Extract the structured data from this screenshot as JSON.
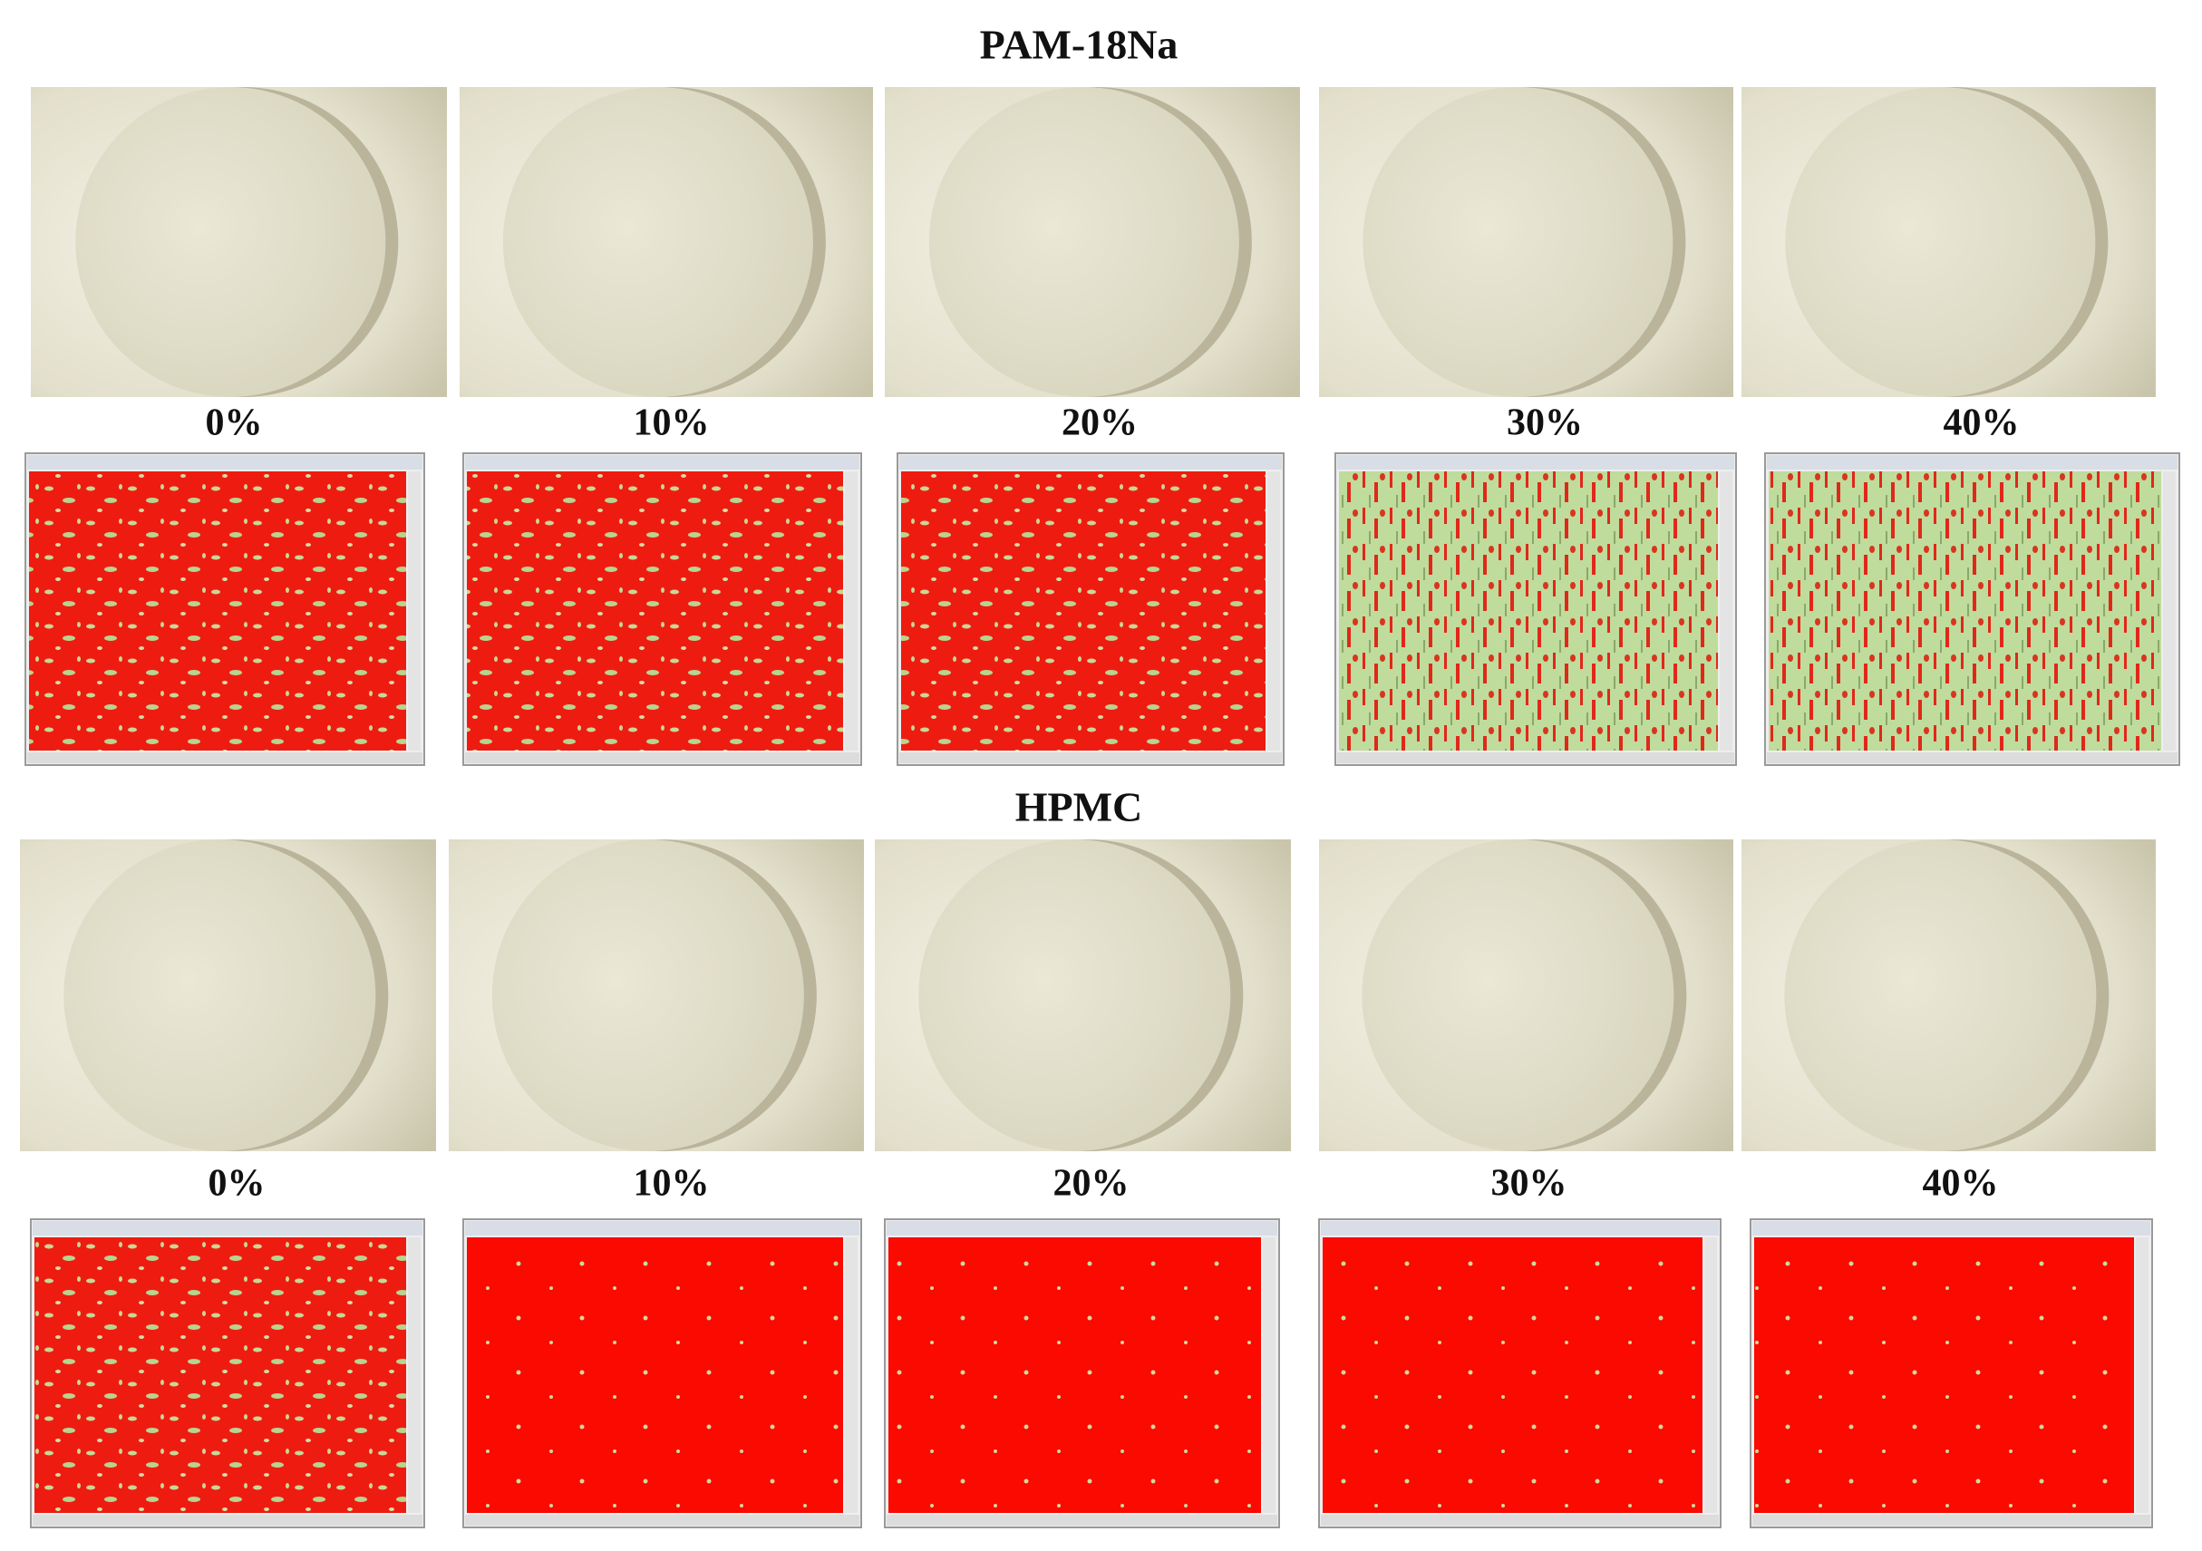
{
  "sections": [
    {
      "title": "PAM-18Na",
      "labels": [
        "0%",
        "10%",
        "20%",
        "30%",
        "40%"
      ]
    },
    {
      "title": "HPMC",
      "labels": [
        "0%",
        "10%",
        "20%",
        "30%",
        "40%"
      ]
    }
  ]
}
